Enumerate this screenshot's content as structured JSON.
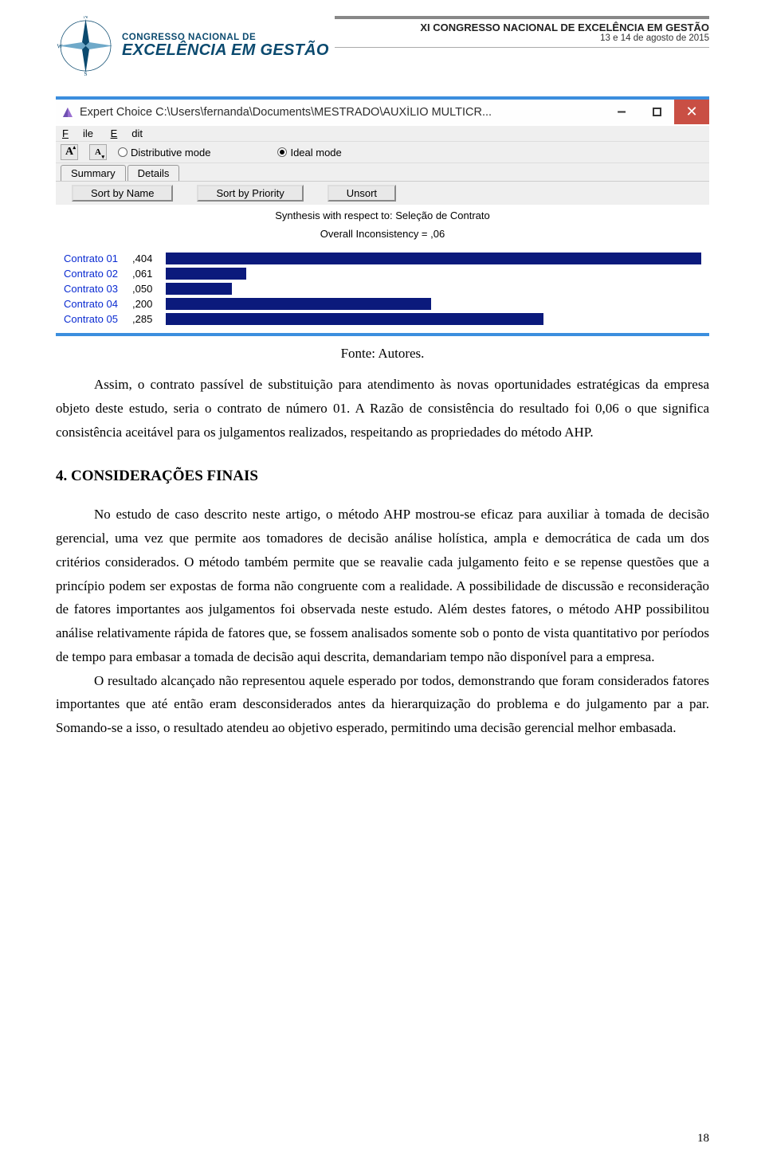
{
  "header": {
    "logo_line1": "CONGRESSO NACIONAL DE",
    "logo_line2": "EXCELÊNCIA EM GESTÃO",
    "title": "XI CONGRESSO NACIONAL DE EXCELÊNCIA EM GESTÃO",
    "date": "13 e 14 de agosto de 2015"
  },
  "screenshot": {
    "window_title": "Expert Choice    C:\\Users\\fernanda\\Documents\\MESTRADO\\AUXÍLIO MULTICR...",
    "titlebar_bg": "#fefefe",
    "titlebar_text_color": "#2d2d2d",
    "borders_blue": "#3b8ede",
    "close_bg": "#c94f44",
    "menu": {
      "file": "File",
      "edit": "Edit"
    },
    "toolbar": {
      "font_big": "A",
      "font_small": "A",
      "mode1": "Distributive mode",
      "mode2": "Ideal mode",
      "mode_selected": 2
    },
    "tabs": {
      "summary": "Summary",
      "details": "Details"
    },
    "sort_buttons": {
      "name": "Sort by Name",
      "priority": "Sort by Priority",
      "unsort": "Unsort"
    },
    "chart": {
      "caption": "Synthesis with respect to: Seleção de Contrato",
      "inconsistency": "Overall Inconsistency = ,06",
      "label_color": "#0a2bd1",
      "bar_color": "#0b1a7c",
      "max_value": 0.404,
      "rows": [
        {
          "label": "Contrato 01",
          "value_text": ",404",
          "value": 0.404
        },
        {
          "label": "Contrato 02",
          "value_text": ",061",
          "value": 0.061
        },
        {
          "label": "Contrato 03",
          "value_text": ",050",
          "value": 0.05
        },
        {
          "label": "Contrato 04",
          "value_text": ",200",
          "value": 0.2
        },
        {
          "label": "Contrato 05",
          "value_text": ",285",
          "value": 0.285
        }
      ]
    }
  },
  "figure_caption": "Fonte: Autores.",
  "para1": "Assim, o contrato passível de substituição para atendimento às novas oportunidades estratégicas da empresa objeto deste estudo, seria o contrato de número 01. A Razão de consistência do resultado foi 0,06 o que significa consistência aceitável para os julgamentos realizados, respeitando as propriedades do método AHP.",
  "section_title": "4. CONSIDERAÇÕES FINAIS",
  "para2": "No estudo de caso descrito neste artigo, o método AHP mostrou-se eficaz para auxiliar à tomada de decisão gerencial, uma vez que permite aos tomadores de decisão análise holística, ampla e democrática de cada um dos critérios considerados. O método também permite que se reavalie cada julgamento feito e se repense questões que a princípio podem ser expostas de forma não congruente com a realidade. A possibilidade de discussão e reconsideração de fatores importantes aos julgamentos foi observada neste estudo. Além destes fatores, o método AHP possibilitou análise relativamente rápida de fatores que, se fossem analisados somente sob o ponto de vista quantitativo por períodos de tempo para embasar a tomada de decisão aqui descrita, demandariam tempo não disponível para a empresa.",
  "para3": "O resultado alcançado não representou aquele esperado por todos, demonstrando que foram considerados fatores importantes que até então eram desconsiderados antes da hierarquização do problema e do julgamento par a par. Somando-se a isso, o resultado atendeu ao objetivo esperado, permitindo uma decisão gerencial melhor embasada.",
  "page_number": "18"
}
